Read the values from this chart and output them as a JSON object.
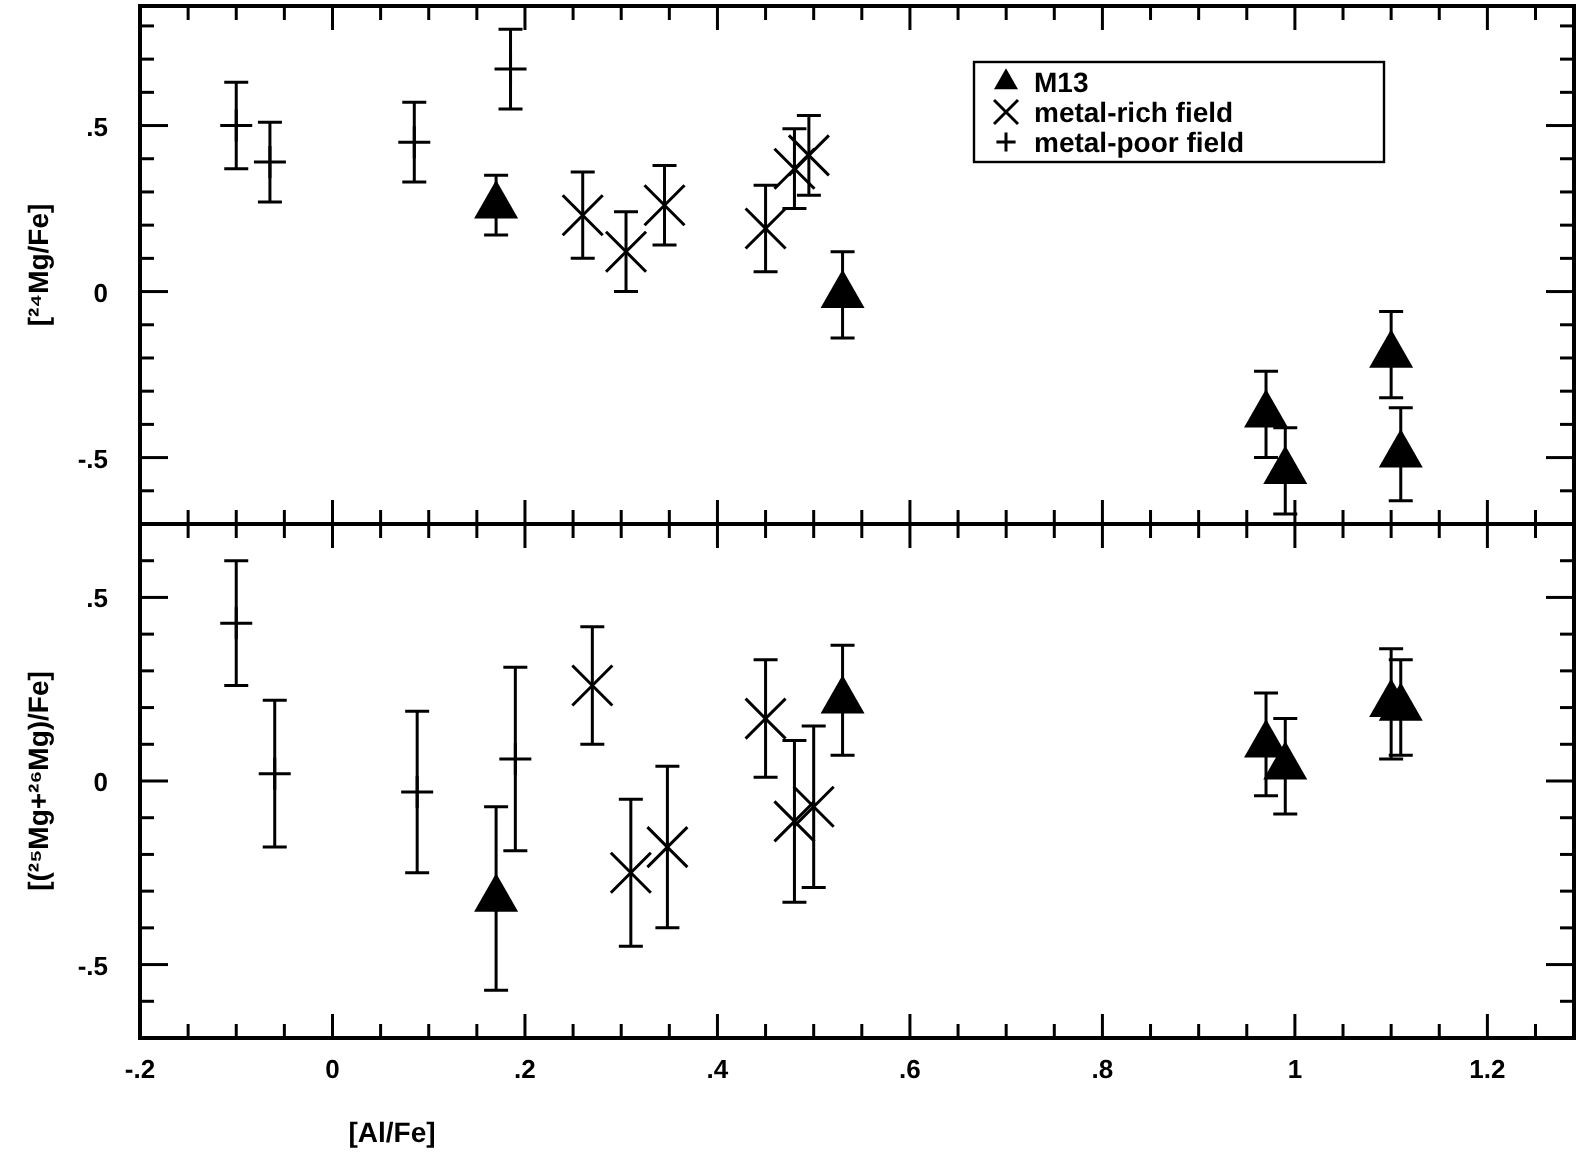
{
  "chart_data": [
    {
      "type": "scatter",
      "ylabel": "[²⁴Mg/Fe]",
      "xlim": [
        -0.2,
        1.29
      ],
      "ylim": [
        -0.7,
        0.86
      ],
      "xticks": [
        {
          "value": -0.2,
          "label": null
        },
        {
          "value": -0.15,
          "label": null
        },
        {
          "value": -0.1,
          "label": null
        },
        {
          "value": -0.05,
          "label": null
        },
        {
          "value": 0,
          "label": null
        },
        {
          "value": 0.05,
          "label": null
        },
        {
          "value": 0.1,
          "label": null
        },
        {
          "value": 0.15,
          "label": null
        },
        {
          "value": 0.2,
          "label": null
        },
        {
          "value": 0.25,
          "label": null
        },
        {
          "value": 0.3,
          "label": null
        },
        {
          "value": 0.35,
          "label": null
        },
        {
          "value": 0.4,
          "label": null
        },
        {
          "value": 0.45,
          "label": null
        },
        {
          "value": 0.5,
          "label": null
        },
        {
          "value": 0.55,
          "label": null
        },
        {
          "value": 0.6,
          "label": null
        },
        {
          "value": 0.65,
          "label": null
        },
        {
          "value": 0.7,
          "label": null
        },
        {
          "value": 0.75,
          "label": null
        },
        {
          "value": 0.8,
          "label": null
        },
        {
          "value": 0.85,
          "label": null
        },
        {
          "value": 0.9,
          "label": null
        },
        {
          "value": 0.95,
          "label": null
        },
        {
          "value": 1,
          "label": null
        },
        {
          "value": 1.05,
          "label": null
        },
        {
          "value": 1.1,
          "label": null
        },
        {
          "value": 1.15,
          "label": null
        },
        {
          "value": 1.2,
          "label": null
        },
        {
          "value": 1.25,
          "label": null
        }
      ],
      "yticks": [
        {
          "value": -0.6,
          "label": null
        },
        {
          "value": -0.5,
          "label": "-.5"
        },
        {
          "value": -0.4,
          "label": null
        },
        {
          "value": -0.3,
          "label": null
        },
        {
          "value": -0.2,
          "label": null
        },
        {
          "value": -0.1,
          "label": null
        },
        {
          "value": 0,
          "label": "0"
        },
        {
          "value": 0.1,
          "label": null
        },
        {
          "value": 0.2,
          "label": null
        },
        {
          "value": 0.3,
          "label": null
        },
        {
          "value": 0.4,
          "label": null
        },
        {
          "value": 0.5,
          "label": ".5"
        },
        {
          "value": 0.6,
          "label": null
        },
        {
          "value": 0.7,
          "label": null
        },
        {
          "value": 0.8,
          "label": null
        }
      ],
      "tick_labels": "y",
      "legend": "top right",
      "grid": false,
      "series": [
        {
          "name": "M13",
          "color": "#000000",
          "marker": "triangle",
          "x": [
            0.17,
            0.53,
            0.97,
            0.99,
            1.1,
            1.11
          ],
          "values": [
            0.26,
            -0.01,
            -0.37,
            -0.54,
            -0.19,
            -0.49
          ],
          "errors": [
            0.09,
            0.13,
            0.13,
            0.13,
            0.13,
            0.14
          ]
        },
        {
          "name": "metal-rich field",
          "color": "#000000",
          "marker": "cross",
          "x": [
            0.26,
            0.305,
            0.345,
            0.45,
            0.48,
            0.495
          ],
          "values": [
            0.23,
            0.12,
            0.26,
            0.19,
            0.37,
            0.41
          ],
          "errors": [
            0.13,
            0.12,
            0.12,
            0.13,
            0.12,
            0.12
          ]
        },
        {
          "name": "metal-poor field",
          "color": "#000000",
          "x": [
            -0.1,
            -0.065,
            0.085,
            0.185
          ],
          "values": [
            0.5,
            0.39,
            0.45,
            0.67
          ],
          "errors": [
            0.13,
            0.12,
            0.12,
            0.12
          ]
        }
      ]
    },
    {
      "type": "scatter",
      "xlabel": "[Al/Fe]",
      "ylabel": "[(²⁵Mg+²⁶Mg)/Fe]",
      "xlim": [
        -0.2,
        1.29
      ],
      "ylim": [
        -0.7,
        0.7
      ],
      "xticks": [
        {
          "value": -0.2,
          "label": "-.2"
        },
        {
          "value": -0.15,
          "label": null
        },
        {
          "value": -0.1,
          "label": null
        },
        {
          "value": -0.05,
          "label": null
        },
        {
          "value": 0,
          "label": "0"
        },
        {
          "value": 0.05,
          "label": null
        },
        {
          "value": 0.1,
          "label": null
        },
        {
          "value": 0.15,
          "label": null
        },
        {
          "value": 0.2,
          "label": ".2"
        },
        {
          "value": 0.25,
          "label": null
        },
        {
          "value": 0.3,
          "label": null
        },
        {
          "value": 0.35,
          "label": null
        },
        {
          "value": 0.4,
          "label": ".4"
        },
        {
          "value": 0.45,
          "label": null
        },
        {
          "value": 0.5,
          "label": null
        },
        {
          "value": 0.55,
          "label": null
        },
        {
          "value": 0.6,
          "label": ".6"
        },
        {
          "value": 0.65,
          "label": null
        },
        {
          "value": 0.7,
          "label": null
        },
        {
          "value": 0.75,
          "label": null
        },
        {
          "value": 0.8,
          "label": ".8"
        },
        {
          "value": 0.85,
          "label": null
        },
        {
          "value": 0.9,
          "label": null
        },
        {
          "value": 0.95,
          "label": null
        },
        {
          "value": 1,
          "label": "1"
        },
        {
          "value": 1.05,
          "label": null
        },
        {
          "value": 1.1,
          "label": null
        },
        {
          "value": 1.15,
          "label": null
        },
        {
          "value": 1.2,
          "label": "1.2"
        },
        {
          "value": 1.25,
          "label": null
        }
      ],
      "yticks": [
        {
          "value": -0.6,
          "label": null
        },
        {
          "value": -0.5,
          "label": "-.5"
        },
        {
          "value": -0.4,
          "label": null
        },
        {
          "value": -0.3,
          "label": null
        },
        {
          "value": -0.2,
          "label": null
        },
        {
          "value": -0.1,
          "label": null
        },
        {
          "value": 0,
          "label": "0"
        },
        {
          "value": 0.1,
          "label": null
        },
        {
          "value": 0.2,
          "label": null
        },
        {
          "value": 0.3,
          "label": null
        },
        {
          "value": 0.4,
          "label": null
        },
        {
          "value": 0.5,
          "label": ".5"
        },
        {
          "value": 0.6,
          "label": null
        }
      ],
      "grid": false,
      "series": [
        {
          "color": "#000000",
          "marker": "triangle",
          "x": [
            0.17,
            0.53,
            0.97,
            0.99,
            1.1,
            1.11
          ],
          "values": [
            -0.32,
            0.22,
            0.1,
            0.04,
            0.21,
            0.2
          ],
          "errors": [
            0.25,
            0.15,
            0.14,
            0.13,
            0.15,
            0.13
          ]
        },
        {
          "color": "#000000",
          "marker": "cross",
          "x": [
            0.27,
            0.31,
            0.348,
            0.45,
            0.48,
            0.5
          ],
          "values": [
            0.26,
            -0.25,
            -0.18,
            0.17,
            -0.11,
            -0.07
          ],
          "errors": [
            0.16,
            0.2,
            0.22,
            0.16,
            0.22,
            0.22
          ]
        },
        {
          "color": "#000000",
          "x": [
            -0.1,
            -0.06,
            0.088,
            0.19
          ],
          "values": [
            0.43,
            0.02,
            -0.03,
            0.06
          ],
          "errors": [
            0.17,
            0.2,
            0.22,
            0.25
          ]
        }
      ]
    }
  ]
}
